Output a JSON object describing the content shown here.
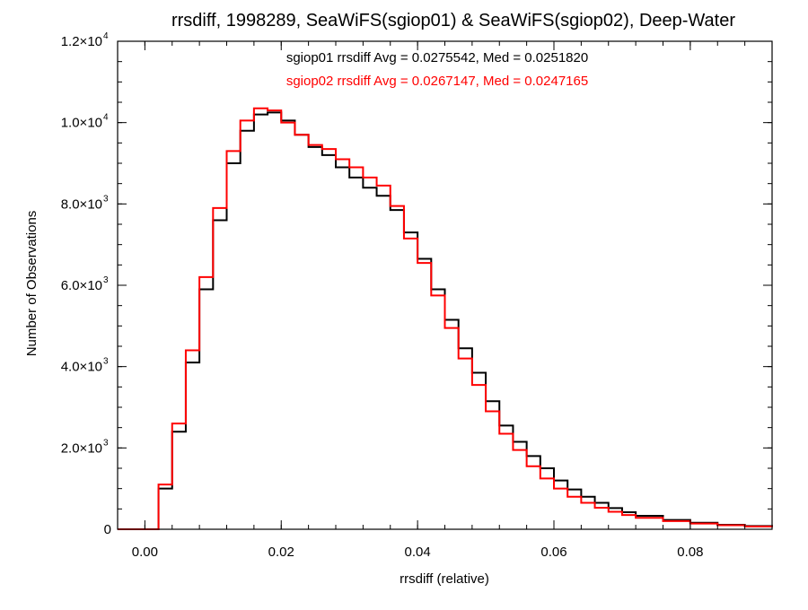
{
  "chart_data": {
    "type": "line",
    "title": "rrsdiff, 1998289, SeaWiFS(sgiop01) & SeaWiFS(sgiop02), Deep-Water",
    "xlabel": "rrsdiff (relative)",
    "ylabel": "Number of Observations",
    "xlim": [
      -0.004,
      0.092
    ],
    "ylim": [
      0,
      12000
    ],
    "grid": false,
    "step": true,
    "x_ticks": [
      {
        "value": 0.0,
        "label": "0.00"
      },
      {
        "value": 0.02,
        "label": "0.02"
      },
      {
        "value": 0.04,
        "label": "0.04"
      },
      {
        "value": 0.06,
        "label": "0.06"
      },
      {
        "value": 0.08,
        "label": "0.08"
      }
    ],
    "x_minor_step": 0.004,
    "y_ticks": [
      {
        "value": 0,
        "label": "0",
        "exponent": ""
      },
      {
        "value": 2000,
        "label": "2.0×10",
        "exponent": "3"
      },
      {
        "value": 4000,
        "label": "4.0×10",
        "exponent": "3"
      },
      {
        "value": 6000,
        "label": "6.0×10",
        "exponent": "3"
      },
      {
        "value": 8000,
        "label": "8.0×10",
        "exponent": "3"
      },
      {
        "value": 10000,
        "label": "1.0×10",
        "exponent": "4"
      },
      {
        "value": 12000,
        "label": "1.2×10",
        "exponent": "4"
      }
    ],
    "y_minor_step": 500,
    "annotations": [
      {
        "text": "sgiop01 rrsdiff Avg = 0.0275542, Med = 0.0251820",
        "color": "#000000"
      },
      {
        "text": "sgiop02 rrsdiff Avg = 0.0267147, Med = 0.0247165",
        "color": "#ff0000"
      }
    ],
    "series": [
      {
        "color": "#000000",
        "x": [
          -0.004,
          0.0,
          0.002,
          0.004,
          0.006,
          0.008,
          0.01,
          0.012,
          0.014,
          0.016,
          0.018,
          0.02,
          0.022,
          0.024,
          0.026,
          0.028,
          0.03,
          0.032,
          0.034,
          0.036,
          0.038,
          0.04,
          0.042,
          0.044,
          0.046,
          0.048,
          0.05,
          0.052,
          0.054,
          0.056,
          0.058,
          0.06,
          0.062,
          0.064,
          0.066,
          0.068,
          0.07,
          0.072,
          0.076,
          0.08,
          0.084,
          0.088,
          0.092
        ],
        "y": [
          0,
          0,
          1000,
          2400,
          4100,
          5900,
          7600,
          9000,
          9800,
          10200,
          10250,
          10050,
          9700,
          9400,
          9200,
          8900,
          8650,
          8400,
          8200,
          7850,
          7300,
          6650,
          5900,
          5150,
          4450,
          3850,
          3150,
          2550,
          2150,
          1800,
          1500,
          1200,
          980,
          800,
          650,
          520,
          420,
          330,
          230,
          160,
          110,
          80,
          60
        ]
      },
      {
        "color": "#ff0000",
        "x": [
          -0.004,
          0.0,
          0.002,
          0.004,
          0.006,
          0.008,
          0.01,
          0.012,
          0.014,
          0.016,
          0.018,
          0.02,
          0.022,
          0.024,
          0.026,
          0.028,
          0.03,
          0.032,
          0.034,
          0.036,
          0.038,
          0.04,
          0.042,
          0.044,
          0.046,
          0.048,
          0.05,
          0.052,
          0.054,
          0.056,
          0.058,
          0.06,
          0.062,
          0.064,
          0.066,
          0.068,
          0.07,
          0.072,
          0.076,
          0.08,
          0.084,
          0.088,
          0.092
        ],
        "y": [
          0,
          0,
          1100,
          2600,
          4400,
          6200,
          7900,
          9300,
          10050,
          10350,
          10300,
          10000,
          9700,
          9450,
          9350,
          9100,
          8900,
          8650,
          8450,
          7950,
          7150,
          6550,
          5750,
          4950,
          4200,
          3550,
          2900,
          2350,
          1950,
          1550,
          1250,
          1000,
          800,
          650,
          530,
          430,
          350,
          280,
          200,
          140,
          100,
          70,
          50
        ]
      }
    ]
  }
}
